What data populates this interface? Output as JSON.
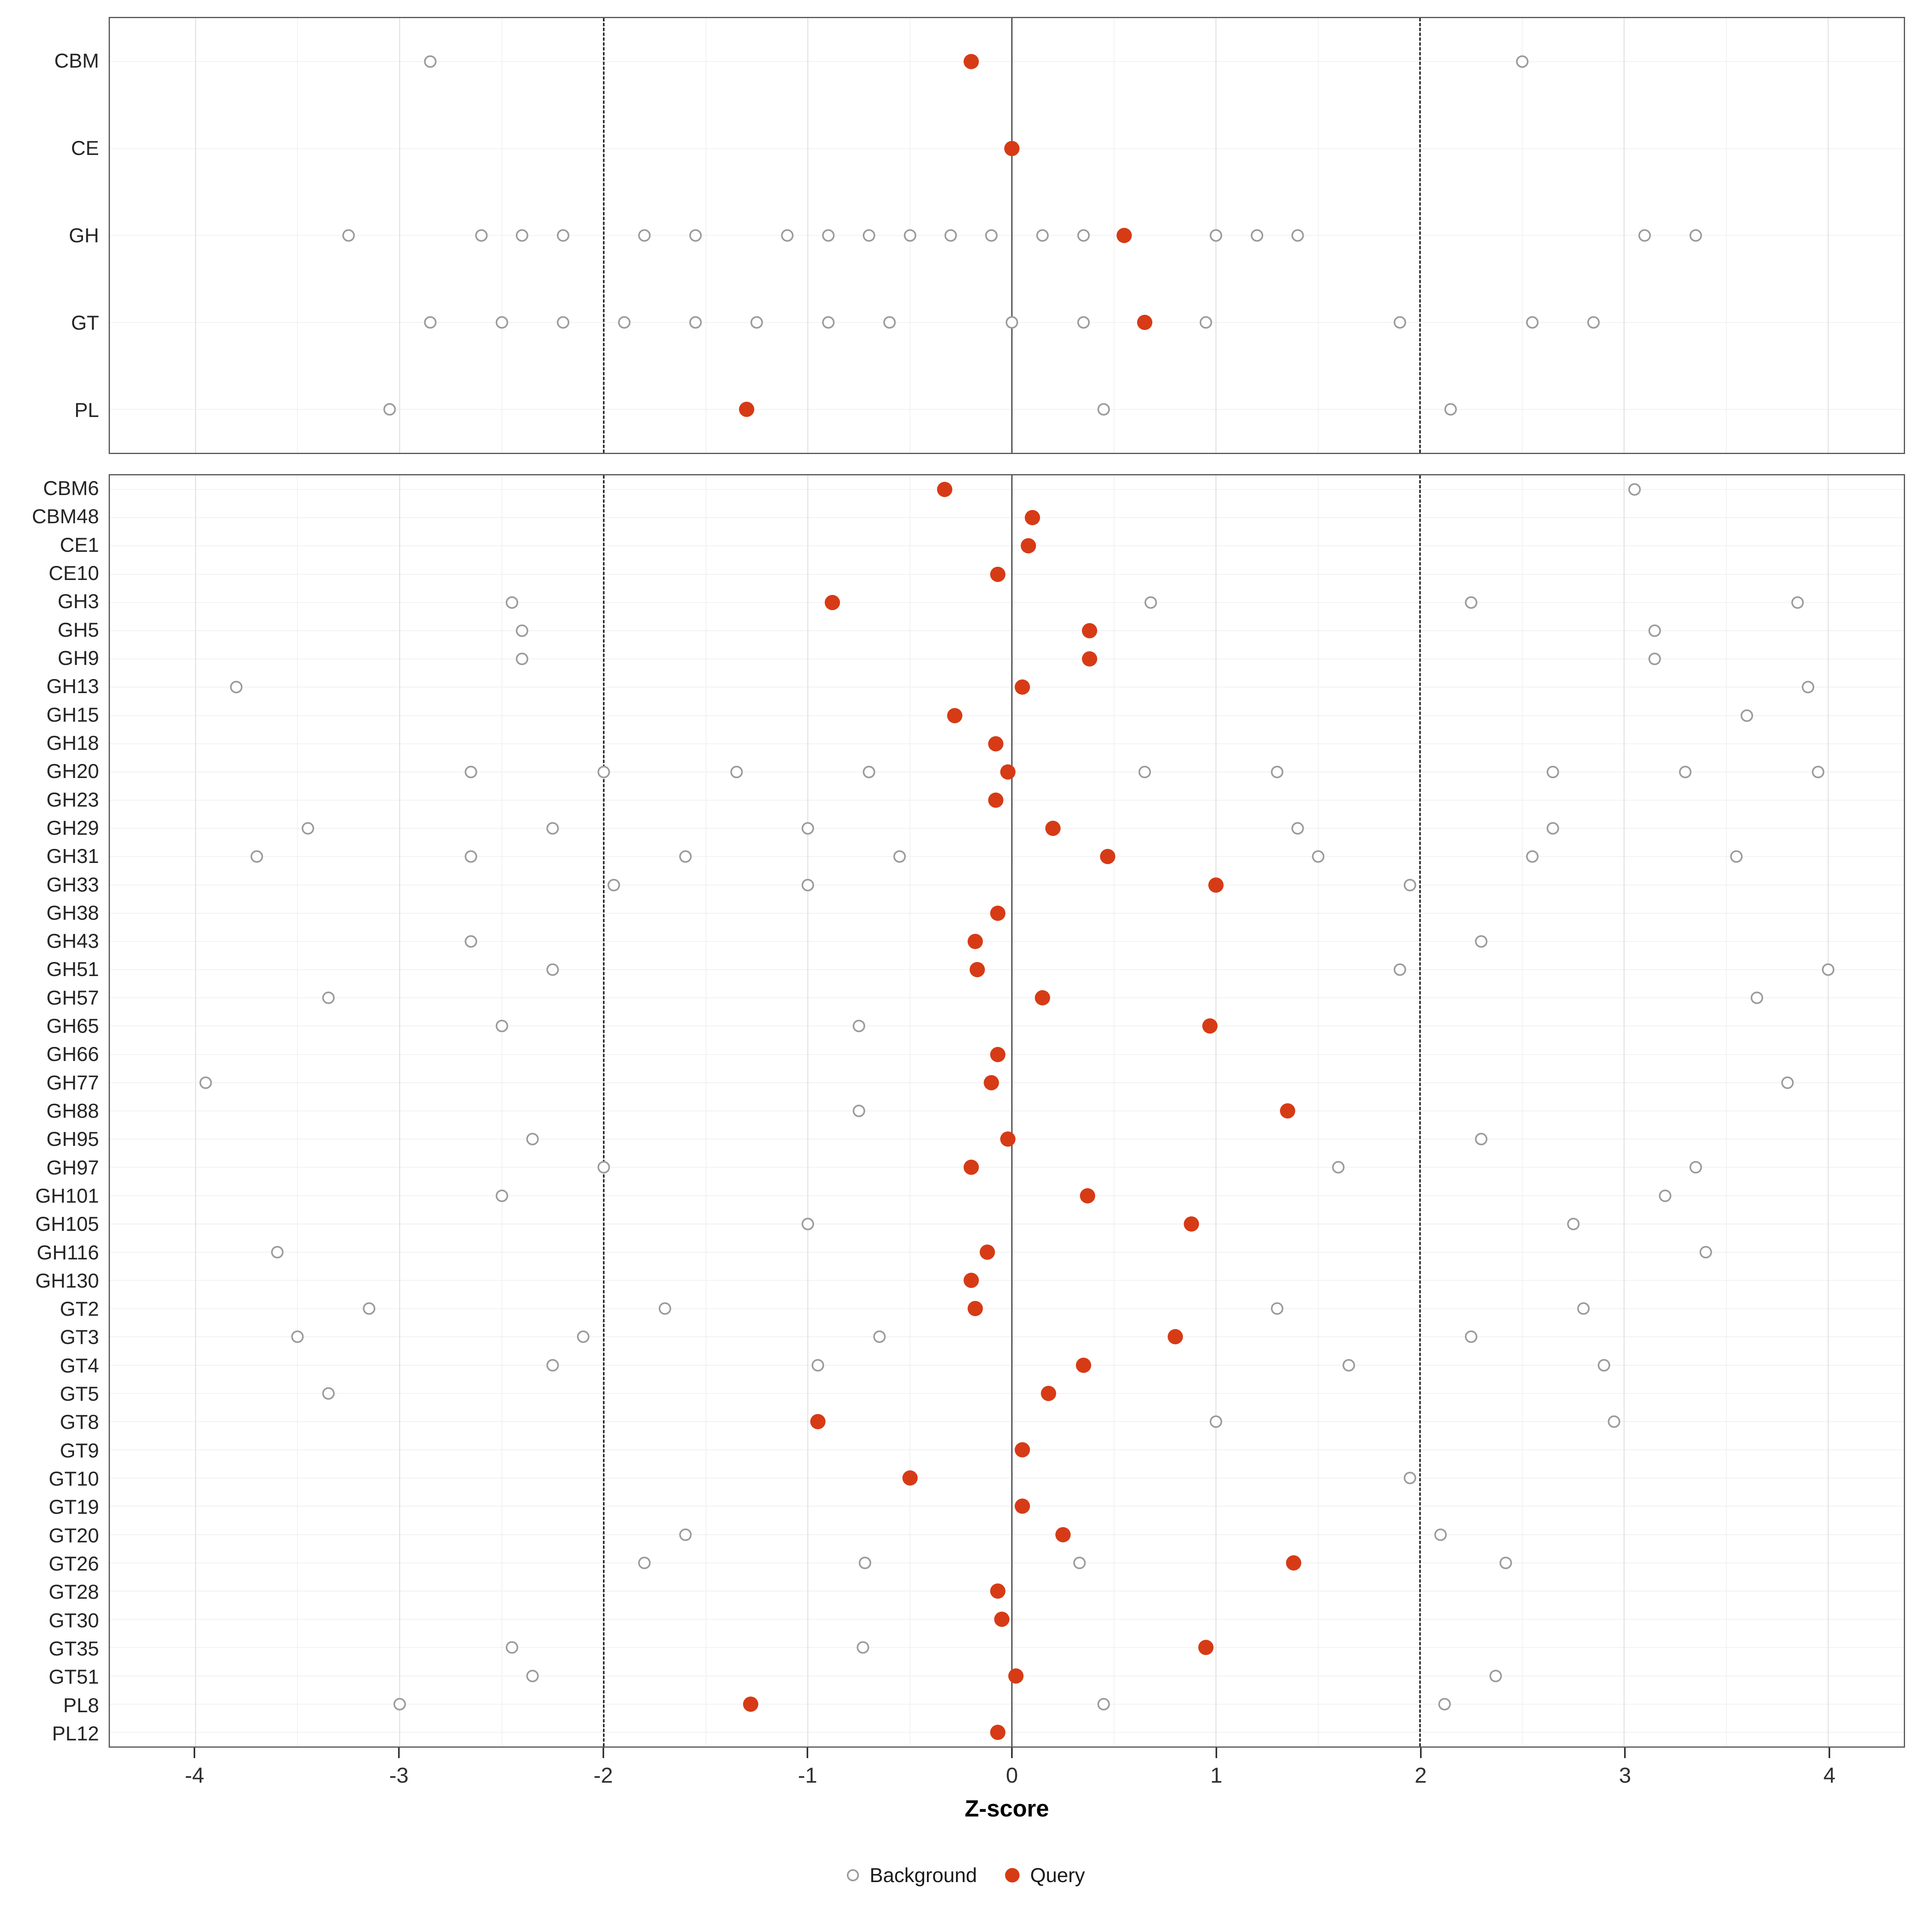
{
  "chart_data": {
    "type": "scatter",
    "title": "",
    "xlabel": "Z-score",
    "ylabel": "",
    "x_ticks": [
      -4,
      -3,
      -2,
      -1,
      0,
      1,
      2,
      3,
      4
    ],
    "x_domain": [
      -4.42,
      4.37
    ],
    "grid": true,
    "legend_position": "bottom",
    "reference_lines": {
      "solid": [
        0
      ],
      "dashed": [
        -2,
        2
      ]
    },
    "legend": [
      {
        "label": "Background",
        "marker": "open"
      },
      {
        "label": "Query",
        "marker": "filled"
      }
    ],
    "colors": {
      "query": "#d63b16",
      "background_ring": "#9b9b9b",
      "grid_major": "#dcdcdc",
      "grid_minor": "#f1f1f1",
      "panel_border": "#595959",
      "ref_solid": "#3f3f3f",
      "ref_dashed": "#2b2b2b"
    },
    "panels": [
      {
        "name": "families",
        "rows": [
          {
            "label": "CBM",
            "query": -0.2,
            "background": [
              -2.85,
              2.5
            ]
          },
          {
            "label": "CE",
            "query": 0.0,
            "background": []
          },
          {
            "label": "GH",
            "query": 0.55,
            "background": [
              -3.25,
              -2.6,
              -2.4,
              -2.2,
              -1.8,
              -1.55,
              -1.1,
              -0.9,
              -0.7,
              -0.5,
              -0.3,
              -0.1,
              0.15,
              0.35,
              1.0,
              1.2,
              1.4,
              3.1,
              3.35
            ]
          },
          {
            "label": "GT",
            "query": 0.65,
            "background": [
              -2.85,
              -2.5,
              -2.2,
              -1.9,
              -1.55,
              -1.25,
              -0.9,
              -0.6,
              0.0,
              0.35,
              0.95,
              1.9,
              2.55,
              2.85
            ]
          },
          {
            "label": "PL",
            "query": -1.3,
            "background": [
              -3.05,
              0.45,
              2.15
            ]
          }
        ]
      },
      {
        "name": "subfamilies",
        "rows": [
          {
            "label": "CBM6",
            "query": -0.33,
            "background": [
              3.05
            ]
          },
          {
            "label": "CBM48",
            "query": 0.1,
            "background": []
          },
          {
            "label": "CE1",
            "query": 0.08,
            "background": []
          },
          {
            "label": "CE10",
            "query": -0.07,
            "background": []
          },
          {
            "label": "GH3",
            "query": -0.88,
            "background": [
              -2.45,
              0.68,
              2.25,
              3.85
            ]
          },
          {
            "label": "GH5",
            "query": 0.38,
            "background": [
              -2.4,
              3.15
            ]
          },
          {
            "label": "GH9",
            "query": 0.38,
            "background": [
              -2.4,
              3.15
            ]
          },
          {
            "label": "GH13",
            "query": 0.05,
            "background": [
              -3.8,
              3.9
            ]
          },
          {
            "label": "GH15",
            "query": -0.28,
            "background": [
              3.6
            ]
          },
          {
            "label": "GH18",
            "query": -0.08,
            "background": []
          },
          {
            "label": "GH20",
            "query": -0.02,
            "background": [
              -2.65,
              -2.0,
              -1.35,
              -0.7,
              0.65,
              1.3,
              2.65,
              3.3,
              3.95
            ]
          },
          {
            "label": "GH23",
            "query": -0.08,
            "background": []
          },
          {
            "label": "GH29",
            "query": 0.2,
            "background": [
              -3.45,
              -2.25,
              -1.0,
              1.4,
              2.65
            ]
          },
          {
            "label": "GH31",
            "query": 0.47,
            "background": [
              -3.7,
              -2.65,
              -1.6,
              -0.55,
              1.5,
              2.55,
              3.55
            ]
          },
          {
            "label": "GH33",
            "query": 1.0,
            "background": [
              -1.95,
              -1.0,
              1.95
            ]
          },
          {
            "label": "GH38",
            "query": -0.07,
            "background": []
          },
          {
            "label": "GH43",
            "query": -0.18,
            "background": [
              -2.65,
              2.3
            ]
          },
          {
            "label": "GH51",
            "query": -0.17,
            "background": [
              -2.25,
              1.9,
              4.0
            ]
          },
          {
            "label": "GH57",
            "query": 0.15,
            "background": [
              -3.35,
              3.65
            ]
          },
          {
            "label": "GH65",
            "query": 0.97,
            "background": [
              -2.5,
              -0.75
            ]
          },
          {
            "label": "GH66",
            "query": -0.07,
            "background": []
          },
          {
            "label": "GH77",
            "query": -0.1,
            "background": [
              -3.95,
              3.8
            ]
          },
          {
            "label": "GH88",
            "query": 1.35,
            "background": [
              -0.75
            ]
          },
          {
            "label": "GH95",
            "query": -0.02,
            "background": [
              -2.35,
              2.3
            ]
          },
          {
            "label": "GH97",
            "query": -0.2,
            "background": [
              -2.0,
              1.6,
              3.35
            ]
          },
          {
            "label": "GH101",
            "query": 0.37,
            "background": [
              -2.5,
              3.2
            ]
          },
          {
            "label": "GH105",
            "query": 0.88,
            "background": [
              -1.0,
              2.75
            ]
          },
          {
            "label": "GH116",
            "query": -0.12,
            "background": [
              -3.6,
              3.4
            ]
          },
          {
            "label": "GH130",
            "query": -0.2,
            "background": []
          },
          {
            "label": "GT2",
            "query": -0.18,
            "background": [
              -3.15,
              -1.7,
              1.3,
              2.8
            ]
          },
          {
            "label": "GT3",
            "query": 0.8,
            "background": [
              -3.5,
              -2.1,
              -0.65,
              2.25
            ]
          },
          {
            "label": "GT4",
            "query": 0.35,
            "background": [
              -2.25,
              -0.95,
              1.65,
              2.9
            ]
          },
          {
            "label": "GT5",
            "query": 0.18,
            "background": [
              -3.35
            ]
          },
          {
            "label": "GT8",
            "query": -0.95,
            "background": [
              1.0,
              2.95
            ]
          },
          {
            "label": "GT9",
            "query": 0.05,
            "background": []
          },
          {
            "label": "GT10",
            "query": -0.5,
            "background": [
              1.95
            ]
          },
          {
            "label": "GT19",
            "query": 0.05,
            "background": []
          },
          {
            "label": "GT20",
            "query": 0.25,
            "background": [
              -1.6,
              2.1
            ]
          },
          {
            "label": "GT26",
            "query": 1.38,
            "background": [
              -1.8,
              -0.72,
              0.33,
              2.42
            ]
          },
          {
            "label": "GT28",
            "query": -0.07,
            "background": []
          },
          {
            "label": "GT30",
            "query": -0.05,
            "background": []
          },
          {
            "label": "GT35",
            "query": 0.95,
            "background": [
              -2.45,
              -0.73
            ]
          },
          {
            "label": "GT51",
            "query": 0.02,
            "background": [
              -2.35,
              2.37
            ]
          },
          {
            "label": "PL8",
            "query": -1.28,
            "background": [
              -3.0,
              0.45,
              2.12
            ]
          },
          {
            "label": "PL12",
            "query": -0.07,
            "background": []
          }
        ]
      }
    ]
  }
}
